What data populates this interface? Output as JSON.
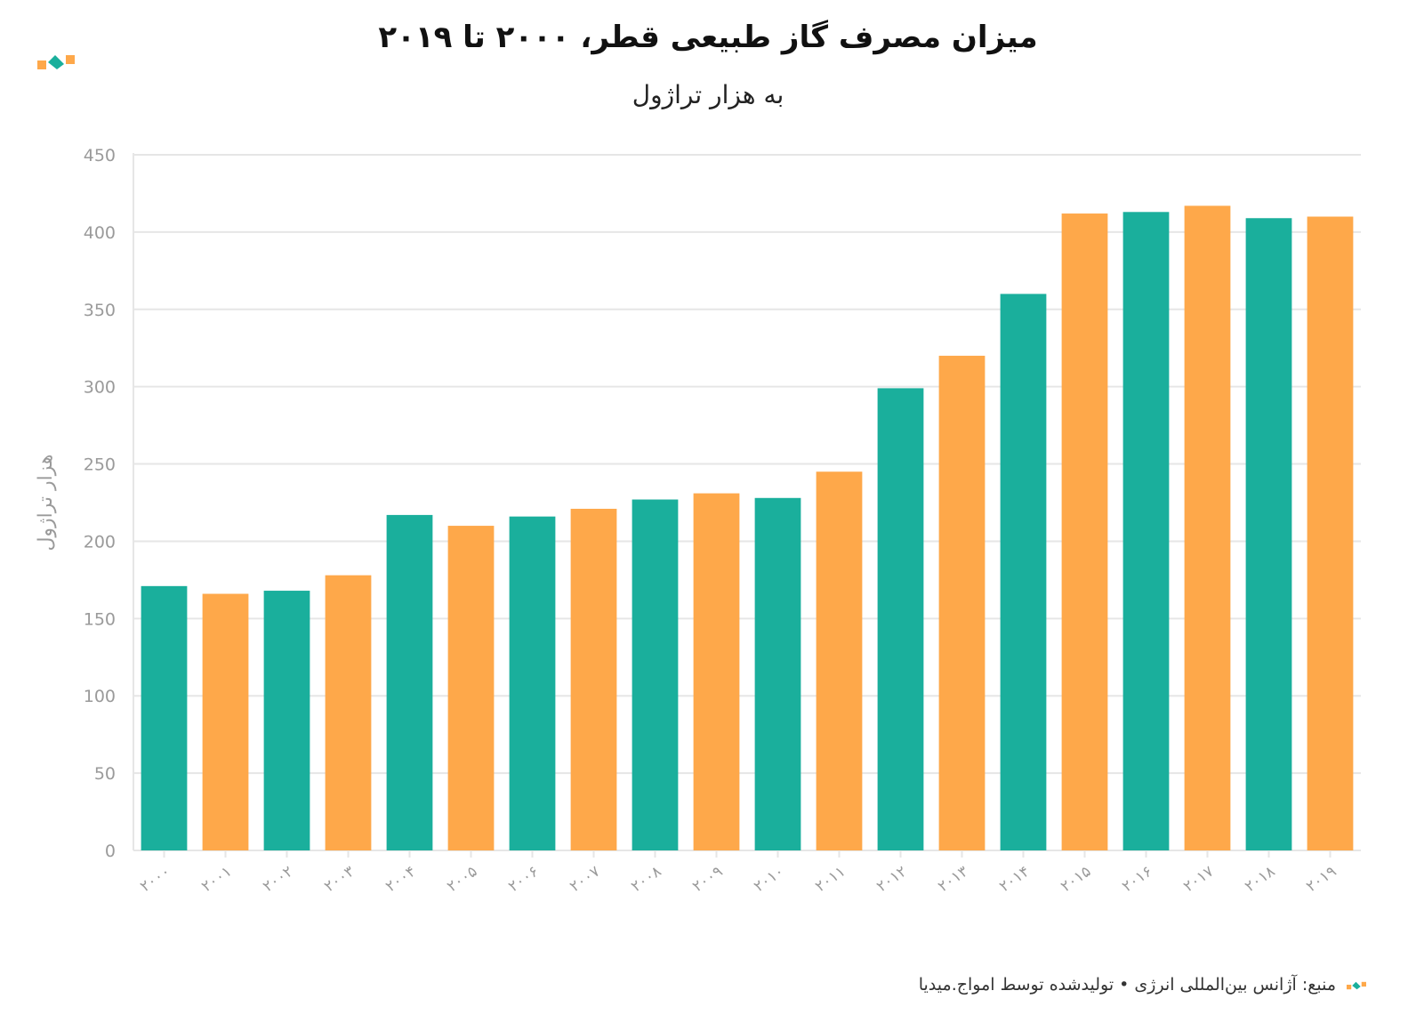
{
  "header": {
    "title": "میزان مصرف گاز طبیعی قطر، ۲۰۰۰ تا ۲۰۱۹",
    "subtitle": "به هزار تراژول"
  },
  "footer": {
    "source_text": "منبع: آژانس بین‌المللی انرژی • تولیدشده توسط امواج.میدیا"
  },
  "colors": {
    "teal": "#1aaf9c",
    "orange": "#fea84a",
    "grid": "#e6e6e6",
    "axis_text": "#9a9a9a"
  },
  "chart_data": {
    "type": "bar",
    "title": "میزان مصرف گاز طبیعی قطر، ۲۰۰۰ تا ۲۰۱۹",
    "subtitle": "به هزار تراژول",
    "ylabel": "هزار تراژول",
    "xlabel": "",
    "ylim": [
      0,
      450
    ],
    "yticks": [
      0,
      50,
      100,
      150,
      200,
      250,
      300,
      350,
      400,
      450
    ],
    "grid": true,
    "categories": [
      "۲۰۰۰",
      "۲۰۰۱",
      "۲۰۰۲",
      "۲۰۰۳",
      "۲۰۰۴",
      "۲۰۰۵",
      "۲۰۰۶",
      "۲۰۰۷",
      "۲۰۰۸",
      "۲۰۰۹",
      "۲۰۱۰",
      "۲۰۱۱",
      "۲۰۱۲",
      "۲۰۱۳",
      "۲۰۱۴",
      "۲۰۱۵",
      "۲۰۱۶",
      "۲۰۱۷",
      "۲۰۱۸",
      "۲۰۱۹"
    ],
    "values": [
      171,
      166,
      168,
      178,
      217,
      210,
      216,
      221,
      227,
      231,
      228,
      245,
      299,
      320,
      360,
      412,
      413,
      417,
      409,
      410
    ],
    "bar_colors": [
      "teal",
      "orange",
      "teal",
      "orange",
      "teal",
      "orange",
      "teal",
      "orange",
      "teal",
      "orange",
      "teal",
      "orange",
      "teal",
      "orange",
      "teal",
      "orange",
      "teal",
      "orange",
      "teal",
      "orange"
    ]
  }
}
